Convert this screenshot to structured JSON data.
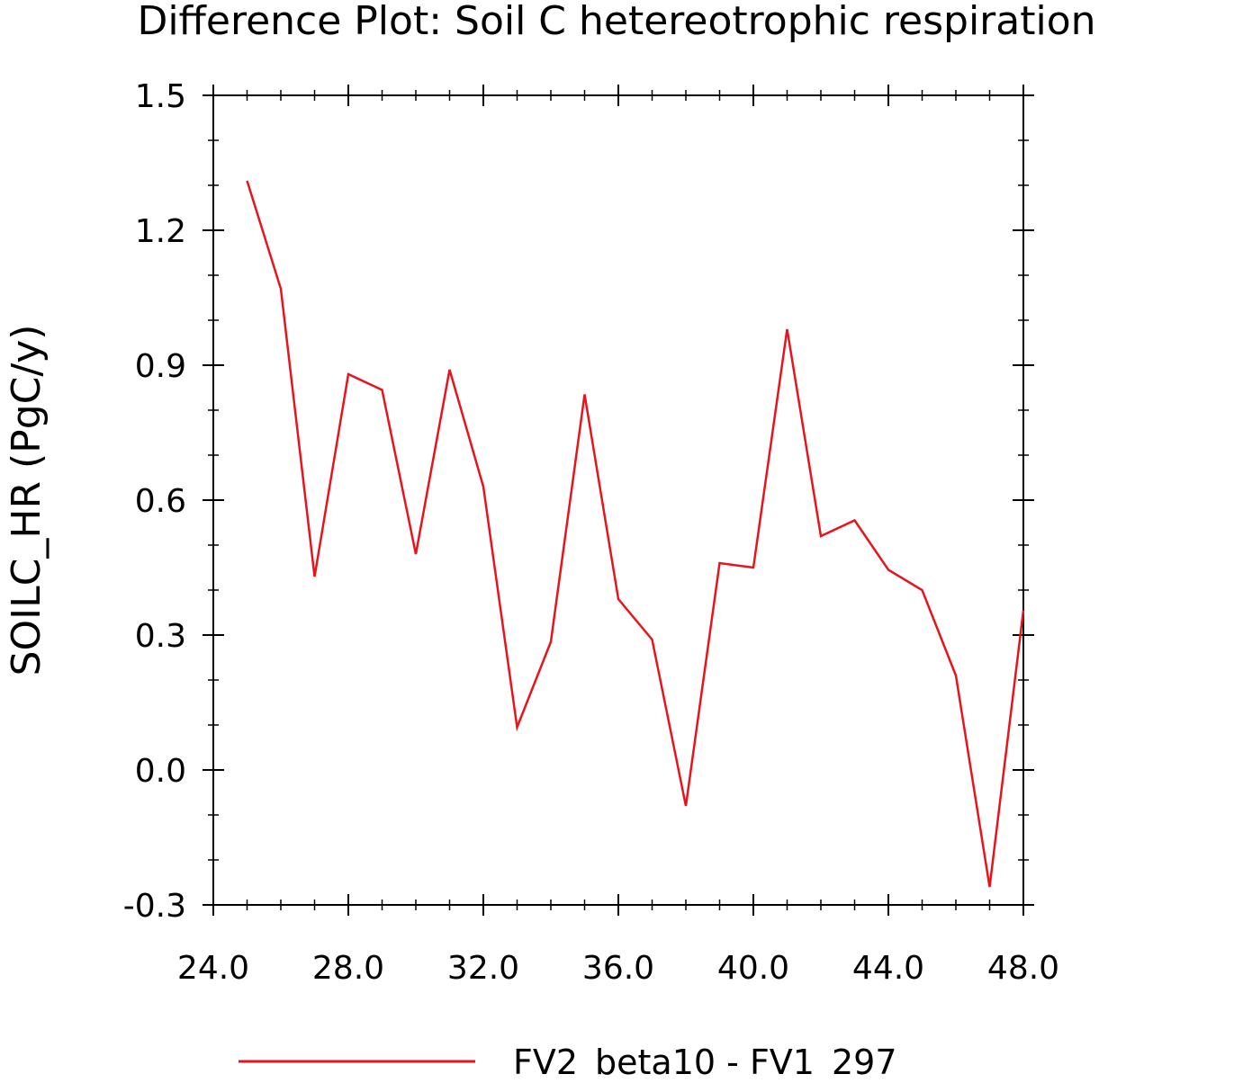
{
  "chart_data": {
    "type": "line",
    "title": "Difference Plot: Soil C hetereotrophic respiration",
    "xlabel": "",
    "ylabel": "SOILC_HR  (PgC/y)",
    "xlim": [
      24,
      48
    ],
    "ylim": [
      -0.3,
      1.5
    ],
    "x_ticks": [
      "24.0",
      "28.0",
      "32.0",
      "36.0",
      "40.0",
      "44.0",
      "48.0"
    ],
    "y_ticks": [
      "-0.3",
      "0.0",
      "0.3",
      "0.6",
      "0.9",
      "1.2",
      "1.5"
    ],
    "legend_position": "bottom",
    "grid": false,
    "series": [
      {
        "name": "FV2_beta10 - FV1_297",
        "color": "#e8141c",
        "x": [
          25,
          26,
          27,
          28,
          29,
          30,
          31,
          32,
          33,
          34,
          35,
          36,
          37,
          38,
          39,
          40,
          41,
          42,
          43,
          44,
          45,
          46,
          47,
          48
        ],
        "y": [
          1.31,
          1.07,
          0.43,
          0.88,
          0.845,
          0.48,
          0.89,
          0.63,
          0.095,
          0.285,
          0.835,
          0.38,
          0.29,
          -0.08,
          0.46,
          0.45,
          0.98,
          0.52,
          0.555,
          0.445,
          0.4,
          0.21,
          -0.26,
          0.355
        ]
      }
    ]
  }
}
